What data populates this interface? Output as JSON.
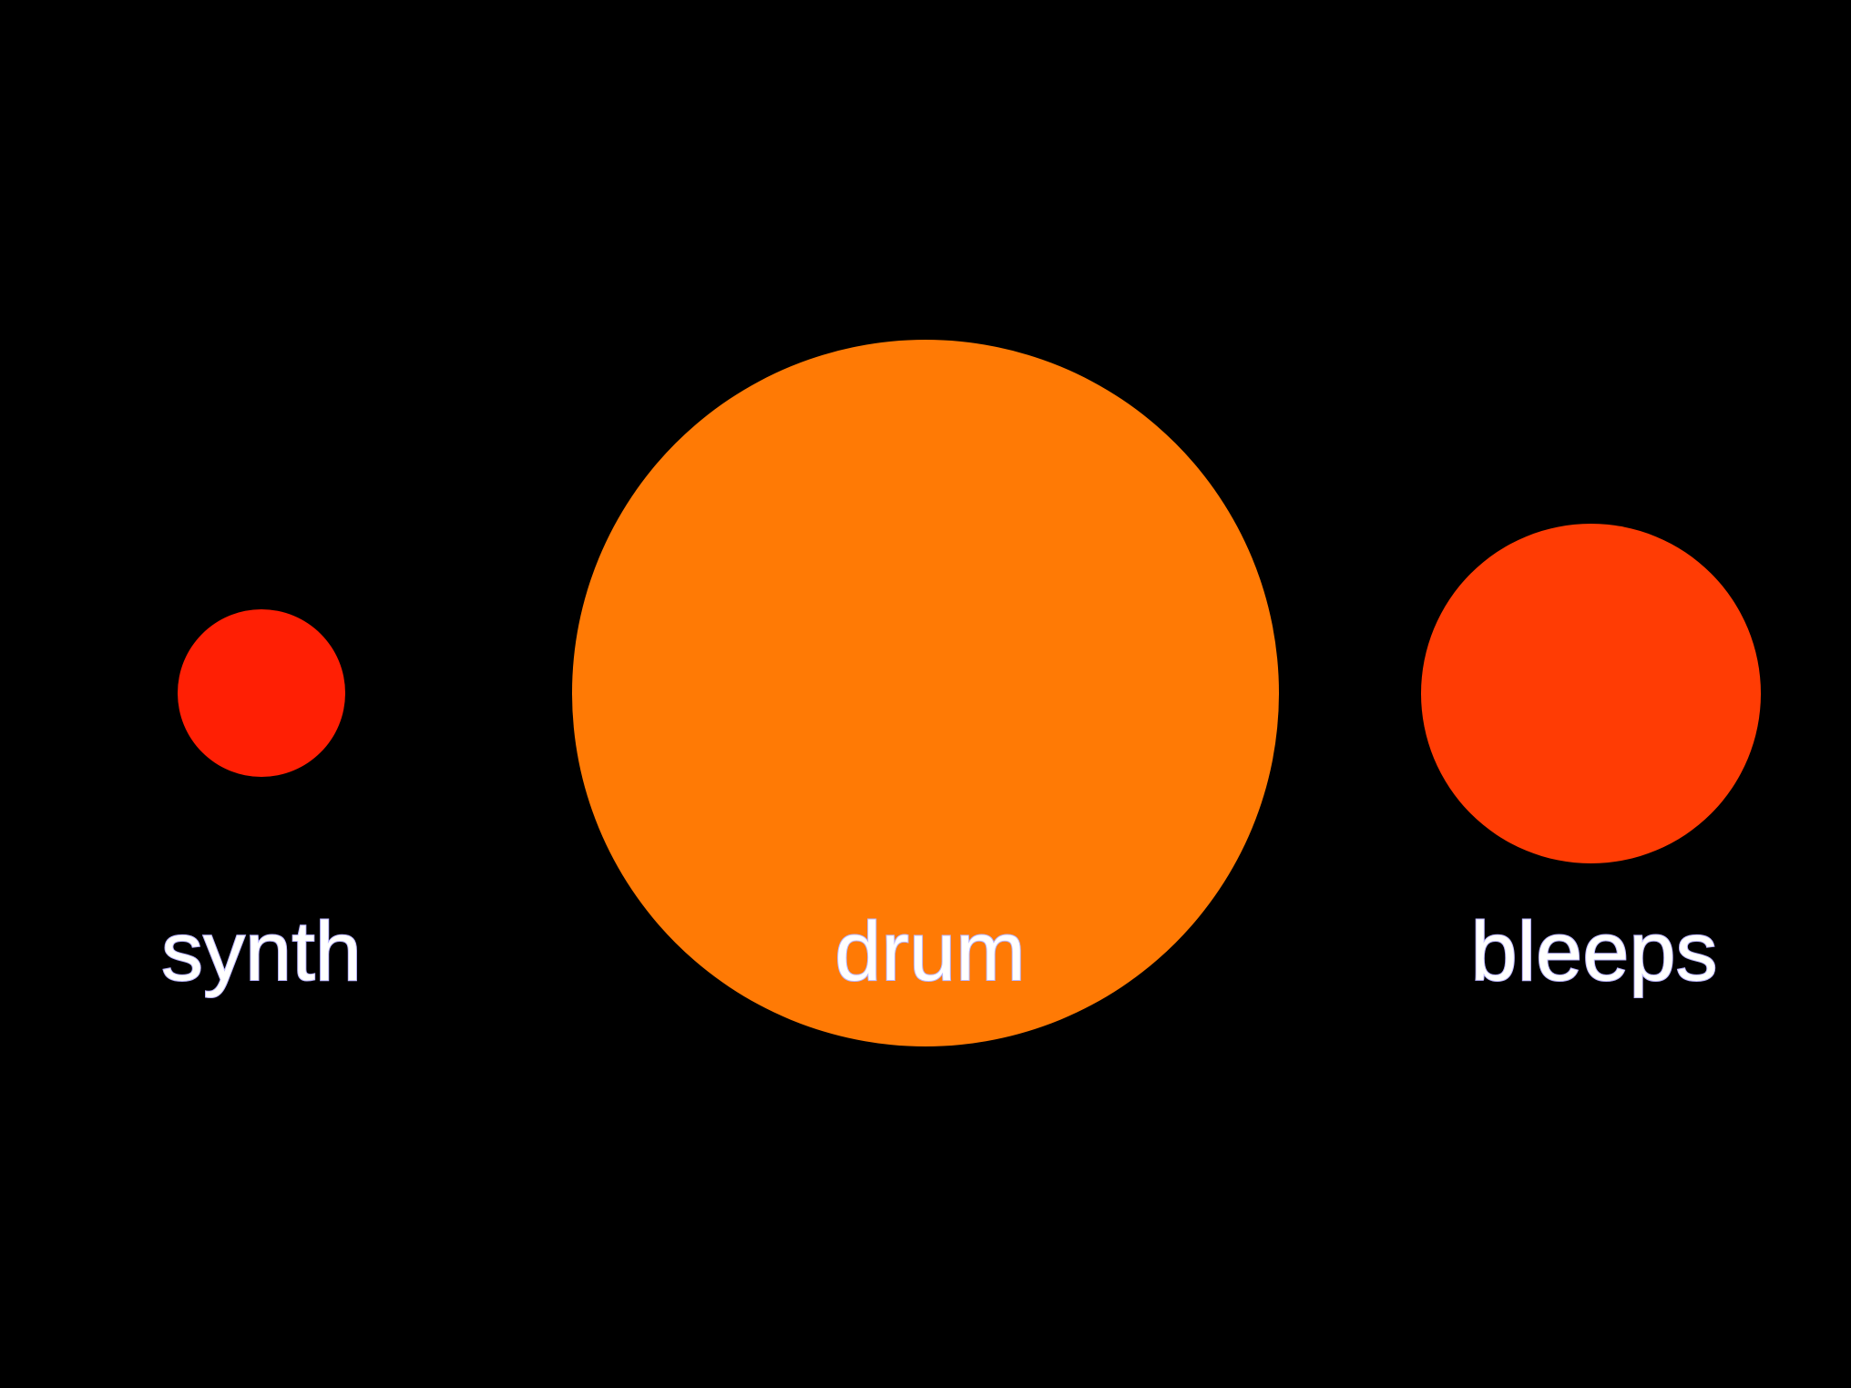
{
  "nodes": [
    {
      "id": "synth",
      "label": "synth",
      "color": "#ff1f04"
    },
    {
      "id": "drum",
      "label": "drum",
      "color": "#ff7a05"
    },
    {
      "id": "bleeps",
      "label": "bleeps",
      "color": "#ff3c04"
    }
  ],
  "background_color": "#000000"
}
